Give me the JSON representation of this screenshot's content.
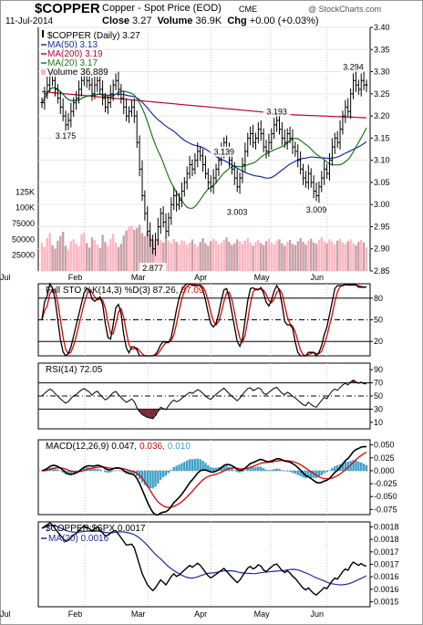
{
  "header": {
    "symbol": "$COPPER",
    "name": "Copper - Spot Price (EOD)",
    "exchange": "CME",
    "watermark": "@ StockCharts.com",
    "date": "11-Jul-2014",
    "close_label": "Close",
    "close": "3.27",
    "volume_label": "Volume",
    "volume": "36.9K",
    "chg_label": "Chg",
    "chg": "+0.00 (+0.03%)"
  },
  "colors": {
    "price": "#000000",
    "ma50": "#1a2aa8",
    "ma200": "#c8002c",
    "ma20": "#1a7a1a",
    "volume_up": "#ffb6c1",
    "volume_down": "#c8a0a8",
    "sto_k": "#000000",
    "sto_d": "#e00000",
    "rsi": "#000000",
    "rsi_fill": "#7a2a3a",
    "macd": "#000000",
    "signal": "#e00000",
    "hist": "#3aa0c8",
    "ratio": "#000000",
    "ratio_ma": "#1a2aa8"
  },
  "chart_data": [
    {
      "type": "ohlc",
      "panel": "price",
      "legend": [
        {
          "text": "$COPPER (Daily) 3.27",
          "color": "#000000"
        },
        {
          "text": "MA(50) 3.13",
          "color": "#1a2aa8"
        },
        {
          "text": "MA(200) 3.19",
          "color": "#c8002c"
        },
        {
          "text": "MA(20) 3.17",
          "color": "#1a7a1a"
        },
        {
          "text": "Volume 36,889",
          "color": "#000000"
        }
      ],
      "x_labels": [
        "Feb",
        "Mar",
        "Apr",
        "May",
        "Jun",
        "Jul"
      ],
      "y_ticks": [
        3.4,
        3.35,
        3.3,
        3.25,
        3.2,
        3.15,
        3.1,
        3.05,
        3.0,
        2.95,
        2.9,
        2.85
      ],
      "ylim": [
        2.85,
        3.4
      ],
      "volume_ticks": [
        "125K",
        "100K",
        "75000",
        "50000",
        "25000"
      ],
      "annotations": [
        {
          "text": "3.175",
          "value": 3.175
        },
        {
          "text": "2.877",
          "value": 2.877
        },
        {
          "text": "3.139",
          "value": 3.139
        },
        {
          "text": "3.003",
          "value": 3.003
        },
        {
          "text": "3.193",
          "value": 3.193
        },
        {
          "text": "3.009",
          "value": 3.009
        },
        {
          "text": "3.294",
          "value": 3.294
        }
      ],
      "close": [
        3.23,
        3.25,
        3.27,
        3.29,
        3.28,
        3.26,
        3.24,
        3.22,
        3.2,
        3.18,
        3.19,
        3.21,
        3.23,
        3.24,
        3.26,
        3.28,
        3.29,
        3.28,
        3.27,
        3.25,
        3.27,
        3.28,
        3.26,
        3.24,
        3.22,
        3.23,
        3.25,
        3.27,
        3.28,
        3.26,
        3.24,
        3.22,
        3.2,
        3.21,
        3.22,
        3.2,
        3.14,
        3.08,
        3.02,
        2.98,
        2.94,
        2.92,
        2.9,
        2.92,
        2.95,
        2.98,
        2.96,
        2.94,
        2.97,
        3.0,
        3.02,
        3.0,
        3.01,
        3.03,
        3.05,
        3.07,
        3.09,
        3.08,
        3.1,
        3.12,
        3.11,
        3.09,
        3.07,
        3.05,
        3.04,
        3.06,
        3.08,
        3.1,
        3.12,
        3.14,
        3.12,
        3.1,
        3.08,
        3.06,
        3.04,
        3.06,
        3.09,
        3.12,
        3.15,
        3.16,
        3.14,
        3.15,
        3.17,
        3.16,
        3.13,
        3.12,
        3.14,
        3.16,
        3.18,
        3.19,
        3.17,
        3.15,
        3.14,
        3.16,
        3.15,
        3.13,
        3.12,
        3.1,
        3.08,
        3.06,
        3.05,
        3.07,
        3.05,
        3.03,
        3.02,
        3.04,
        3.06,
        3.08,
        3.07,
        3.1,
        3.13,
        3.15,
        3.14,
        3.17,
        3.2,
        3.22,
        3.21,
        3.25,
        3.28,
        3.27,
        3.26,
        3.28,
        3.27,
        3.27
      ],
      "volume": [
        45000,
        38000,
        52000,
        60000,
        41000,
        35000,
        48000,
        55000,
        62000,
        40000,
        33000,
        47000,
        50000,
        43000,
        39000,
        58000,
        61000,
        44000,
        37000,
        53000,
        49000,
        42000,
        36000,
        57000,
        46000,
        40000,
        51000,
        59000,
        45000,
        38000,
        43000,
        56000,
        64000,
        70000,
        72000,
        65000,
        68000,
        73000,
        60000,
        55000,
        62000,
        58000,
        50000,
        47000,
        52000,
        49000,
        45000,
        53000,
        48000,
        44000,
        51000,
        46000,
        42000,
        49000,
        47000,
        41000,
        45000,
        50000,
        43000,
        39000,
        46000,
        52000,
        44000,
        40000,
        47000,
        51000,
        48000,
        42000,
        45000,
        49000,
        53000,
        46000,
        41000,
        44000,
        50000,
        47000,
        43000,
        48000,
        52000,
        45000,
        40000,
        46000,
        49000,
        44000,
        41000,
        47000,
        51000,
        45000,
        42000,
        48000,
        50000,
        44000,
        40000,
        46000,
        49000,
        43000,
        41000,
        47000,
        52000,
        46000,
        42000,
        48000,
        51000,
        45000,
        43000,
        49000,
        53000,
        47000,
        44000,
        50000,
        46000,
        42000,
        48000,
        51000,
        45000,
        43000,
        47000,
        50000,
        44000,
        41000,
        46000,
        49000,
        45000,
        37000
      ]
    },
    {
      "type": "line",
      "panel": "stochastic",
      "legend": [
        {
          "text": "Full STO %K(14,3) %D(3) 87.26,",
          "color": "#000000"
        },
        {
          "text": "87.09",
          "color": "#e00000"
        }
      ],
      "y_ticks": [
        80,
        50,
        20
      ],
      "ylim": [
        0,
        100
      ]
    },
    {
      "type": "line",
      "panel": "rsi",
      "legend": [
        {
          "text": "RSI(14) 72.05",
          "color": "#000000"
        }
      ],
      "y_ticks": [
        90,
        70,
        50,
        30,
        10
      ],
      "ylim": [
        0,
        100
      ]
    },
    {
      "type": "line",
      "panel": "macd",
      "legend": [
        {
          "text": "MACD(12,26,9) 0.047,",
          "color": "#000000"
        },
        {
          "text": "0.036,",
          "color": "#e00000"
        },
        {
          "text": "0.010",
          "color": "#3aa0c8"
        }
      ],
      "y_ticks": [
        0.05,
        0.025,
        0.0,
        -0.025,
        -0.05,
        -0.075
      ],
      "tick_labels": [
        "0.050",
        "0.025",
        "0.000",
        "-0.025",
        "-0.050",
        "-0.075"
      ],
      "ylim": [
        -0.085,
        0.06
      ]
    },
    {
      "type": "line",
      "panel": "ratio",
      "legend": [
        {
          "text": "$COPPER:$SPX 0.0017",
          "color": "#000000"
        },
        {
          "text": "MA(20) 0.0016",
          "color": "#1a2aa8"
        }
      ],
      "y_ticks": [
        0.0018,
        0.00175,
        0.0017,
        0.00165,
        0.0016,
        0.00155,
        0.0015
      ],
      "tick_labels": [
        "0.0018",
        "0.0018",
        "0.0017",
        "0.0017",
        "0.0016",
        "0.0016",
        "0.0015"
      ],
      "ylim": [
        0.00148,
        0.00182
      ],
      "x_labels": [
        "Feb",
        "Mar",
        "Apr",
        "May",
        "Jun",
        "Jul"
      ]
    }
  ]
}
